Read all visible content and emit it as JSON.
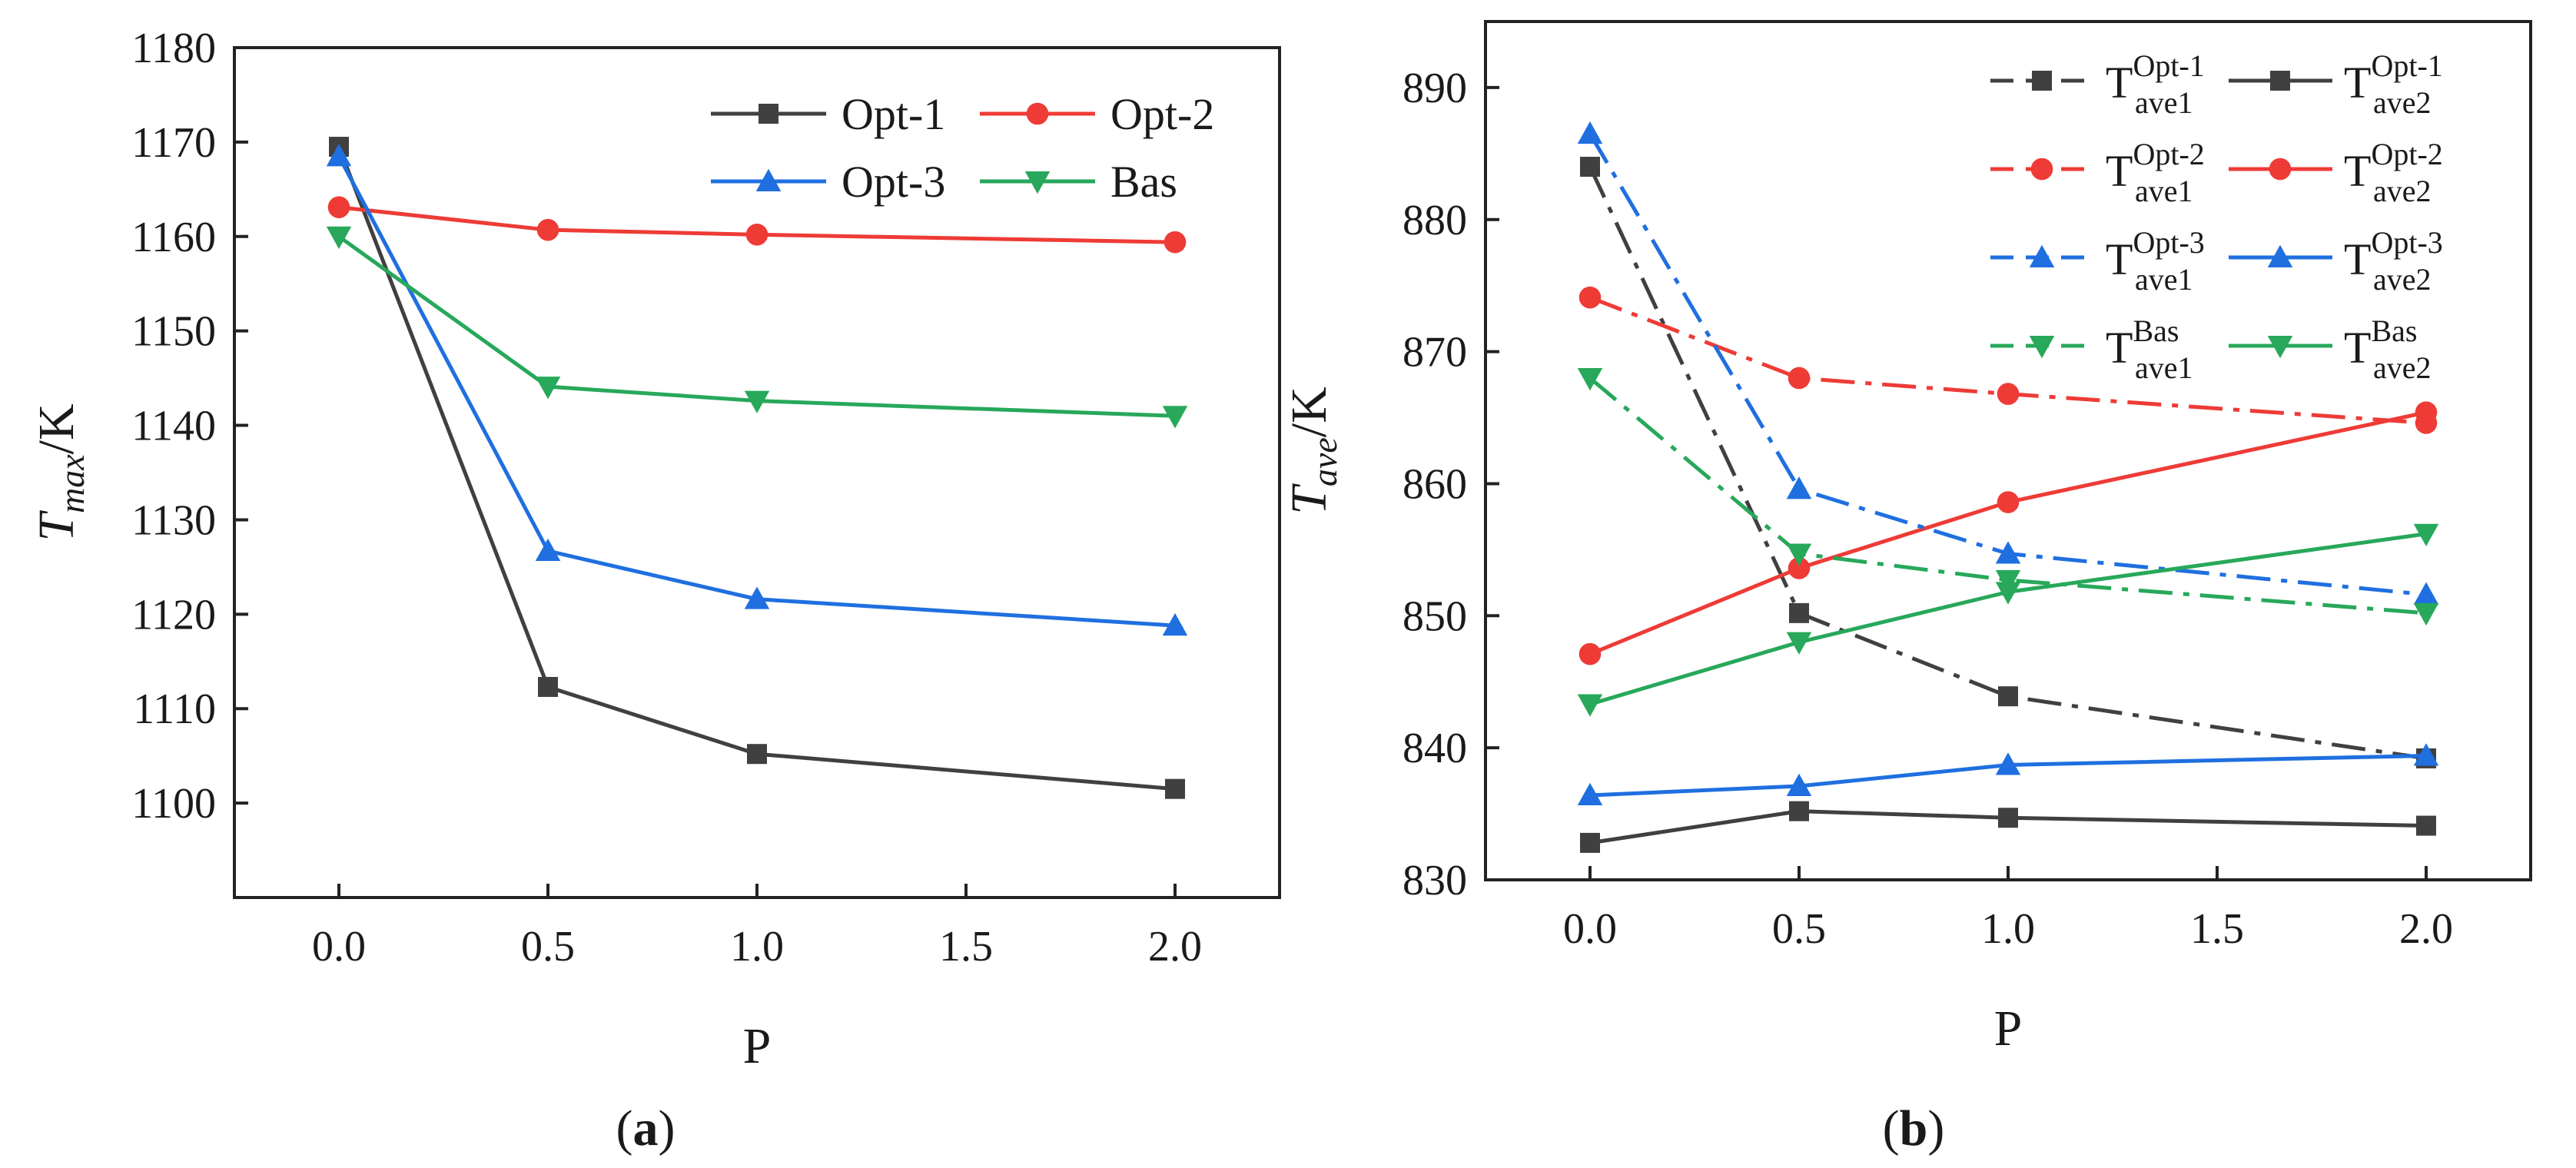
{
  "chart_data": [
    {
      "type": "line",
      "title": "",
      "panel_label": "(a)",
      "panel_letter": "a",
      "xlabel": "P",
      "ylabel": "T",
      "ylabel_sub": "max",
      "ylabel_unit": "/K",
      "xlim": [
        -0.25,
        2.25
      ],
      "ylim": [
        1090,
        1180
      ],
      "xticks": [
        0.0,
        0.5,
        1.0,
        1.5,
        2.0
      ],
      "xtick_labels": [
        "0.0",
        "0.5",
        "1.0",
        "1.5",
        "2.0"
      ],
      "yticks": [
        1100,
        1110,
        1120,
        1130,
        1140,
        1150,
        1160,
        1170,
        1180
      ],
      "ytick_labels": [
        "1100",
        "1110",
        "1120",
        "1130",
        "1140",
        "1150",
        "1160",
        "1170",
        "1180"
      ],
      "legend_position": "top-right",
      "legend_columns": 2,
      "x": [
        0.0,
        0.5,
        1.0,
        2.0
      ],
      "series": [
        {
          "name": "Opt-1",
          "color": "#404040",
          "marker": "square",
          "dash": "solid",
          "values": [
            1169.5,
            1112.3,
            1105.2,
            1101.5
          ]
        },
        {
          "name": "Opt-2",
          "color": "#ee3b36",
          "marker": "circle",
          "dash": "solid",
          "values": [
            1163.1,
            1160.7,
            1160.2,
            1159.4
          ]
        },
        {
          "name": "Opt-3",
          "color": "#1f6fe0",
          "marker": "triangle-up",
          "dash": "solid",
          "values": [
            1168.5,
            1126.7,
            1121.6,
            1118.8
          ]
        },
        {
          "name": "Bas",
          "color": "#27a85a",
          "marker": "triangle-down",
          "dash": "solid",
          "values": [
            1160.0,
            1144.1,
            1142.6,
            1141.0
          ]
        }
      ]
    },
    {
      "type": "line",
      "title": "",
      "panel_label": "(b)",
      "panel_letter": "b",
      "xlabel": "P",
      "ylabel": "T",
      "ylabel_sub": "ave",
      "ylabel_unit": "/K",
      "xlim": [
        -0.25,
        2.25
      ],
      "ylim": [
        830,
        895
      ],
      "xticks": [
        0.0,
        0.5,
        1.0,
        1.5,
        2.0
      ],
      "xtick_labels": [
        "0.0",
        "0.5",
        "1.0",
        "1.5",
        "2.0"
      ],
      "yticks": [
        830,
        840,
        850,
        860,
        870,
        880,
        890
      ],
      "ytick_labels": [
        "830",
        "840",
        "850",
        "860",
        "870",
        "880",
        "890"
      ],
      "legend_position": "top-right",
      "legend_columns": 2,
      "x": [
        0.0,
        0.5,
        1.0,
        2.0
      ],
      "series": [
        {
          "name": "T_ave1^Opt-1",
          "base": "T",
          "sup": "Opt-1",
          "sub": "ave1",
          "color": "#404040",
          "marker": "square",
          "dash": "dashdot",
          "values": [
            884.0,
            850.2,
            843.9,
            839.2
          ]
        },
        {
          "name": "T_ave2^Opt-1",
          "base": "T",
          "sup": "Opt-1",
          "sub": "ave2",
          "color": "#404040",
          "marker": "square",
          "dash": "solid",
          "values": [
            832.8,
            835.2,
            834.7,
            834.1
          ]
        },
        {
          "name": "T_ave1^Opt-2",
          "base": "T",
          "sup": "Opt-2",
          "sub": "ave1",
          "color": "#ee3b36",
          "marker": "circle",
          "dash": "dashdot",
          "values": [
            874.1,
            868.0,
            866.8,
            864.6
          ]
        },
        {
          "name": "T_ave2^Opt-2",
          "base": "T",
          "sup": "Opt-2",
          "sub": "ave2",
          "color": "#ee3b36",
          "marker": "circle",
          "dash": "solid",
          "values": [
            847.1,
            853.6,
            858.6,
            865.4
          ]
        },
        {
          "name": "T_ave1^Opt-3",
          "base": "T",
          "sup": "Opt-3",
          "sub": "ave1",
          "color": "#1f6fe0",
          "marker": "triangle-up",
          "dash": "dashdot",
          "values": [
            886.5,
            859.6,
            854.7,
            851.6
          ]
        },
        {
          "name": "T_ave2^Opt-3",
          "base": "T",
          "sup": "Opt-3",
          "sub": "ave2",
          "color": "#1f6fe0",
          "marker": "triangle-up",
          "dash": "solid",
          "values": [
            836.4,
            837.1,
            838.7,
            839.4
          ]
        },
        {
          "name": "T_ave1^Bas",
          "base": "T",
          "sup": "Bas",
          "sub": "ave1",
          "color": "#27a85a",
          "marker": "triangle-down",
          "dash": "dashdot",
          "values": [
            868.0,
            854.7,
            852.7,
            850.2
          ]
        },
        {
          "name": "T_ave2^Bas",
          "base": "T",
          "sup": "Bas",
          "sub": "ave2",
          "color": "#27a85a",
          "marker": "triangle-down",
          "dash": "solid",
          "values": [
            843.3,
            848.0,
            851.8,
            856.2
          ]
        }
      ]
    }
  ]
}
